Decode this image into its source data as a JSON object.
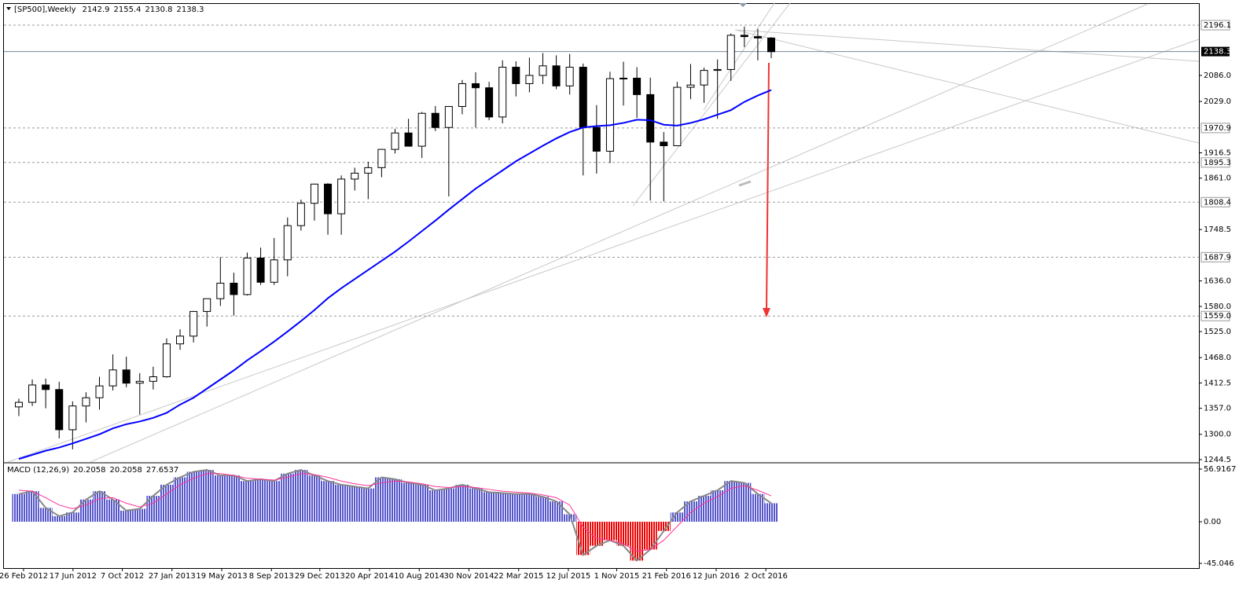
{
  "chart_data": [
    {
      "type": "candlestick",
      "title": "[SP500],Weekly",
      "header_values": [
        2142.9,
        2155.4,
        2130.8,
        2138.3
      ],
      "xlim": [
        -0.61,
        88.33
      ],
      "xticks": [
        {
          "value": 0.85,
          "label": "26 Feb 2012"
        },
        {
          "value": 4.53,
          "label": "17 Jun 2012"
        },
        {
          "value": 8.2,
          "label": "7 Oct 2012"
        },
        {
          "value": 11.9,
          "label": "27 Jan 2013"
        },
        {
          "value": 15.6,
          "label": "19 May 2013"
        },
        {
          "value": 19.3,
          "label": "8 Sep 2013"
        },
        {
          "value": 22.9,
          "label": "29 Dec 2013"
        },
        {
          "value": 26.6,
          "label": "20 Apr 2014"
        },
        {
          "value": 30.3,
          "label": "10 Aug 2014"
        },
        {
          "value": 34.0,
          "label": "30 Nov 2014"
        },
        {
          "value": 37.7,
          "label": "22 Mar 2015"
        },
        {
          "value": 41.4,
          "label": "12 Jul 2015"
        },
        {
          "value": 45.0,
          "label": "1 Nov 2015"
        },
        {
          "value": 48.7,
          "label": "21 Feb 2016"
        },
        {
          "value": 52.4,
          "label": "12 Jun 2016"
        },
        {
          "value": 56.1,
          "label": "2 Oct 2016"
        }
      ],
      "ylim": [
        1239.3,
        2242.6
      ],
      "yticks": [
        {
          "value": 2086,
          "label": "2086.0"
        },
        {
          "value": 2029,
          "label": "2029.0"
        },
        1916.5,
        {
          "value": 1861,
          "label": "1861.0"
        },
        1748.5,
        {
          "value": 1636,
          "label": "1636.0"
        },
        {
          "value": 1580,
          "label": "1580.0"
        },
        {
          "value": 1525,
          "label": "1525.0"
        },
        {
          "value": 1468,
          "label": "1468.0"
        },
        1412.5,
        {
          "value": 1357,
          "label": "1357.0"
        },
        {
          "value": 1300,
          "label": "1300.0"
        },
        1244.5
      ],
      "levels": [
        2196.1,
        1970.9,
        1895.3,
        1808.4,
        1687.9,
        {
          "value": 1559,
          "label": "1559.0"
        }
      ],
      "current_price": 2138.3,
      "ohlc": [
        [
          1360,
          1378,
          1340,
          1370
        ],
        [
          1370,
          1420,
          1362,
          1408
        ],
        [
          1408,
          1422,
          1357,
          1398
        ],
        [
          1398,
          1415,
          1291,
          1310
        ],
        [
          1310,
          1372,
          1267,
          1362
        ],
        [
          1362,
          1392,
          1326,
          1380
        ],
        [
          1380,
          1426,
          1354,
          1406
        ],
        [
          1406,
          1475,
          1396,
          1441
        ],
        [
          1441,
          1470,
          1403,
          1412
        ],
        [
          1412,
          1434,
          1343,
          1416
        ],
        [
          1416,
          1448,
          1398,
          1426
        ],
        [
          1426,
          1510,
          1424,
          1498
        ],
        [
          1498,
          1530,
          1485,
          1515
        ],
        [
          1515,
          1570,
          1501,
          1569
        ],
        [
          1569,
          1597,
          1536,
          1597
        ],
        [
          1597,
          1688,
          1581,
          1631
        ],
        [
          1631,
          1654,
          1560,
          1606
        ],
        [
          1606,
          1698,
          1604,
          1686
        ],
        [
          1686,
          1709,
          1627,
          1633
        ],
        [
          1633,
          1730,
          1627,
          1682
        ],
        [
          1682,
          1775,
          1646,
          1757
        ],
        [
          1757,
          1814,
          1746,
          1806
        ],
        [
          1806,
          1849,
          1768,
          1848
        ],
        [
          1848,
          1850,
          1737,
          1783
        ],
        [
          1783,
          1867,
          1737,
          1859
        ],
        [
          1859,
          1884,
          1834,
          1872
        ],
        [
          1872,
          1897,
          1815,
          1884
        ],
        [
          1884,
          1925,
          1863,
          1924
        ],
        [
          1924,
          1969,
          1915,
          1960
        ],
        [
          1960,
          1991,
          1930,
          1931
        ],
        [
          1931,
          2006,
          1905,
          2003
        ],
        [
          2003,
          2019,
          1964,
          1972
        ],
        [
          1972,
          2019,
          1821,
          2018
        ],
        [
          2018,
          2076,
          2001,
          2068
        ],
        [
          2068,
          2093,
          1972,
          2059
        ],
        [
          2059,
          2072,
          1988,
          1995
        ],
        [
          1995,
          2119,
          1981,
          2104
        ],
        [
          2104,
          2117,
          2040,
          2068
        ],
        [
          2068,
          2125,
          2049,
          2086
        ],
        [
          2086,
          2135,
          2067,
          2107
        ],
        [
          2107,
          2130,
          2056,
          2063
        ],
        [
          2063,
          2133,
          2044,
          2104
        ],
        [
          2104,
          2112,
          1867,
          1972
        ],
        [
          1972,
          2021,
          1871,
          1920
        ],
        [
          1920,
          2094,
          1894,
          2079
        ],
        [
          2079,
          2116,
          2020,
          2080
        ],
        [
          2080,
          2104,
          1993,
          2044
        ],
        [
          2044,
          2081,
          1812,
          1940
        ],
        [
          1940,
          1962,
          1810,
          1932
        ],
        [
          1932,
          2072,
          1932,
          2060
        ],
        [
          2060,
          2111,
          2034,
          2065
        ],
        [
          2065,
          2103,
          2026,
          2097
        ],
        [
          2097,
          2121,
          1991,
          2099
        ],
        [
          2099,
          2178,
          2074,
          2174
        ],
        [
          2174,
          2193,
          2148,
          2171
        ],
        [
          2171,
          2188,
          2119,
          2168
        ],
        [
          2168,
          2170,
          2124,
          2138
        ]
      ],
      "series": [
        {
          "color": "#0000ff",
          "values": [
            1246,
            1255,
            1264,
            1271,
            1280,
            1290,
            1300,
            1313,
            1322,
            1328,
            1336,
            1347,
            1365,
            1380,
            1400,
            1420,
            1440,
            1462,
            1482,
            1503,
            1525,
            1548,
            1572,
            1598,
            1620,
            1640,
            1660,
            1680,
            1700,
            1722,
            1745,
            1768,
            1792,
            1815,
            1838,
            1858,
            1878,
            1898,
            1915,
            1932,
            1948,
            1962,
            1972,
            1975,
            1977,
            1982,
            1989,
            1988,
            1978,
            1976,
            1982,
            1990,
            2000,
            2010,
            2028,
            2042,
            2054
          ]
        }
      ]
    },
    {
      "type": "macd",
      "title": "MACD (12,26,9)",
      "header_values": [
        20.2058,
        20.2058,
        27.6537
      ],
      "ylim": [
        -50.1,
        62.87
      ],
      "yticks": [
        56.9167,
        {
          "value": 0,
          "label": "0.00"
        },
        -45.046
      ],
      "histogram": {
        "color": "#5555cc",
        "negative_color": "#ee0000",
        "values": [
          30,
          33,
          15,
          6,
          10,
          24,
          33,
          24,
          12,
          14,
          28,
          40,
          48,
          54,
          56,
          50,
          50,
          44,
          46,
          44,
          52,
          56,
          50,
          44,
          40,
          38,
          36,
          48,
          46,
          42,
          40,
          34,
          36,
          40,
          36,
          32,
          31,
          30,
          30,
          27,
          22,
          8,
          -36,
          -26,
          -20,
          -26,
          -42,
          -30,
          -10,
          10,
          22,
          28,
          34,
          44,
          42,
          30,
          20
        ]
      },
      "signal": {
        "color": "#ff3399",
        "values": [
          34,
          33,
          26,
          18,
          14,
          18,
          25,
          26,
          20,
          16,
          20,
          30,
          40,
          47,
          52,
          52,
          50,
          47,
          46,
          45,
          48,
          52,
          51,
          48,
          44,
          41,
          39,
          42,
          44,
          43,
          41,
          38,
          37,
          38,
          37,
          35,
          33,
          32,
          31,
          29,
          26,
          18,
          -6,
          -18,
          -20,
          -24,
          -32,
          -30,
          -20,
          -5,
          10,
          20,
          27,
          36,
          39,
          34,
          28
        ]
      }
    }
  ]
}
